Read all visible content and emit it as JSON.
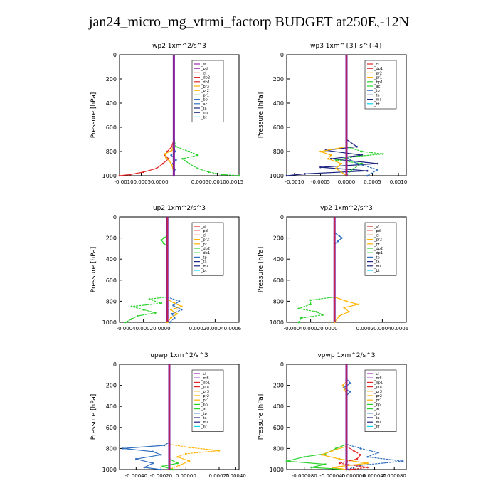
{
  "page_title": "jan24_micro_mg_vtrmi_factorp  BUDGET at250E,-12N",
  "colors": {
    "axes": "#000000",
    "zero_line": "#7b1fa2",
    "red": "#e32626",
    "orange": "#ffb300",
    "green": "#2bd12b",
    "blue": "#2f6fbf",
    "cyan": "#00d6f0",
    "navy": "#1a237e",
    "purple": "#9c27b0"
  },
  "chart_data": [
    {
      "type": "line",
      "title": "wp2   1xm^2/s^3",
      "ylabel": "Pressure [hPa]",
      "ylim": [
        1000,
        0
      ],
      "yticks": [
        0,
        200,
        400,
        600,
        800,
        1000
      ],
      "xlim": [
        -0.00125,
        0.0015
      ],
      "xtick_labels": [
        "-0.00100.00050.0000",
        "0.00050.00100.0015"
      ],
      "xtick_label_values": [
        -0.00075,
        0.001
      ],
      "legend": [
        "_sf",
        "_pd",
        "_cl",
        "_dp2",
        "_dp1",
        "_pr3",
        "_pr2",
        "_pr1",
        "_bp",
        "_ac",
        "_ta",
        "_ma",
        "_bt"
      ],
      "legend_colors": [
        "purple",
        "purple",
        "red",
        "red",
        "red",
        "orange",
        "orange",
        "green",
        "blue",
        "blue",
        "navy",
        "navy",
        "cyan"
      ],
      "series": [
        {
          "color": "red",
          "pressure": [
            700,
            760,
            800,
            830,
            860,
            900,
            940,
            970,
            990,
            1000
          ],
          "values": [
            0,
            -5e-05,
            -0.00015,
            -0.0002,
            -0.00012,
            -0.00025,
            -0.0004,
            -0.0007,
            -0.001,
            -0.00125
          ]
        },
        {
          "color": "green",
          "pressure": [
            700,
            760,
            800,
            830,
            860,
            900,
            940,
            970,
            990,
            1000
          ],
          "values": [
            0,
            5e-05,
            0.00035,
            0.00055,
            0.0002,
            0.00035,
            0.00055,
            0.0008,
            0.0011,
            0.0015
          ]
        },
        {
          "color": "orange",
          "pressure": [
            750,
            790,
            820,
            850,
            880,
            910,
            940,
            1000
          ],
          "values": [
            0,
            -5e-05,
            -0.0002,
            -0.00018,
            -0.0001,
            -5e-05,
            -2e-05,
            0
          ]
        },
        {
          "color": "blue",
          "pressure": [
            760,
            800,
            830,
            870,
            900,
            950,
            1000
          ],
          "values": [
            0,
            3e-05,
            -6e-05,
            5e-05,
            -2e-05,
            2e-05,
            0
          ]
        }
      ]
    },
    {
      "type": "line",
      "title": "wp3   1xm^{3} s^{-4}",
      "ylabel": "Pressure [hPa]",
      "ylim": [
        1000,
        0
      ],
      "yticks": [
        0,
        200,
        400,
        600,
        800,
        1000
      ],
      "xlim": [
        -0.00115,
        0.00115
      ],
      "xtick_labels": [
        "-0.0010",
        "-0.0005",
        "0.0000",
        "0.0005",
        "0.0010"
      ],
      "xtick_label_values": [
        -0.001,
        -0.0005,
        0,
        0.0005,
        0.001
      ],
      "legend": [
        "_cl",
        "_dp1",
        "_pr2",
        "_pr1",
        "_bp1",
        "_ac",
        "_tp",
        "_ta",
        "_ma",
        "_bt"
      ],
      "legend_colors": [
        "red",
        "red",
        "orange",
        "orange",
        "green",
        "green",
        "blue",
        "navy",
        "navy",
        "cyan"
      ],
      "series": [
        {
          "color": "navy",
          "pressure": [
            700,
            760,
            790,
            830,
            860,
            900,
            930,
            960,
            985,
            1000
          ],
          "values": [
            0,
            0.0002,
            -0.0004,
            0.0003,
            -0.0003,
            0.0006,
            -0.0005,
            0.0004,
            -0.0008,
            -0.00115
          ]
        },
        {
          "color": "green",
          "pressure": [
            760,
            800,
            820,
            840,
            870,
            900,
            950,
            1000
          ],
          "values": [
            0,
            0.0003,
            0.0007,
            0.0002,
            -0.0002,
            0.0003,
            0.0001,
            0
          ]
        },
        {
          "color": "orange",
          "pressure": [
            760,
            800,
            830,
            860,
            900,
            940,
            1000
          ],
          "values": [
            0,
            -0.0005,
            -0.0003,
            -0.00035,
            -0.0001,
            -0.0002,
            0
          ]
        },
        {
          "color": "blue",
          "pressure": [
            850,
            900,
            950,
            1000
          ],
          "values": [
            0,
            0.0002,
            0.0006,
            0.0004
          ]
        }
      ]
    },
    {
      "type": "line",
      "title": "up2   1xm^2/s^3",
      "ylabel": "Pressure [hPa]",
      "ylim": [
        1000,
        0
      ],
      "yticks": [
        0,
        200,
        400,
        600,
        800,
        1000
      ],
      "xlim": [
        -0.0004,
        0.0006
      ],
      "xtick_labels": [
        "-0.00040.00020.0000",
        "0.00020.00040.0006"
      ],
      "xtick_label_values": [
        -0.0002,
        0.0004
      ],
      "legend": [
        "_sf",
        "_pd",
        "_cl",
        "_pr2",
        "_pr1",
        "_dp2",
        "_dp1",
        "_tp",
        "_ta",
        "_ma",
        "_bt"
      ],
      "legend_colors": [
        "red",
        "red",
        "red",
        "orange",
        "orange",
        "green",
        "green",
        "blue",
        "navy",
        "navy",
        "cyan"
      ],
      "series": [
        {
          "color": "green",
          "pressure": [
            180,
            200,
            220,
            250,
            280
          ],
          "values": [
            0,
            -3e-05,
            -5e-05,
            -3e-05,
            0
          ]
        },
        {
          "color": "green",
          "pressure": [
            760,
            780,
            820,
            850,
            880,
            910,
            940,
            970,
            1000
          ],
          "values": [
            0,
            -0.00015,
            -5e-05,
            -0.0003,
            -0.0002,
            -0.0001,
            -0.00025,
            -0.0003,
            -0.00035
          ]
        },
        {
          "color": "orange",
          "pressure": [
            780,
            820,
            850,
            880,
            920,
            960,
            1000
          ],
          "values": [
            0,
            6e-05,
            0.00012,
            3e-05,
            8e-05,
            3e-05,
            0
          ]
        },
        {
          "color": "blue",
          "pressure": [
            760,
            800,
            840,
            880,
            920,
            960,
            1000
          ],
          "values": [
            0,
            0.0001,
            5e-05,
            0.00012,
            4e-05,
            6e-05,
            2e-05
          ]
        }
      ]
    },
    {
      "type": "line",
      "title": "vp2   1xm^2/s^3",
      "ylabel": "Pressure [hPa]",
      "ylim": [
        1000,
        0
      ],
      "yticks": [
        0,
        200,
        400,
        600,
        800,
        1000
      ],
      "xlim": [
        -0.0004,
        0.0006
      ],
      "xtick_labels": [
        "-0.00040.00020.0000",
        "0.00020.00040.0006"
      ],
      "xtick_label_values": [
        -0.0002,
        0.0004
      ],
      "legend": [
        "_sf",
        "_pd",
        "_cl",
        "_pr2",
        "_pr1",
        "_dp2",
        "_dp1",
        "_tp",
        "_ta",
        "_ma",
        "_bt"
      ],
      "legend_colors": [
        "red",
        "red",
        "red",
        "orange",
        "orange",
        "green",
        "green",
        "blue",
        "navy",
        "navy",
        "cyan"
      ],
      "series": [
        {
          "color": "blue",
          "pressure": [
            150,
            180,
            200,
            230,
            260
          ],
          "values": [
            0,
            4e-05,
            6e-05,
            3e-05,
            0
          ]
        },
        {
          "color": "green",
          "pressure": [
            760,
            790,
            830,
            870,
            900,
            930,
            960,
            1000
          ],
          "values": [
            0,
            -0.0002,
            -0.0002,
            -0.0003,
            -0.00015,
            -0.0001,
            -0.00028,
            -0.0003
          ]
        },
        {
          "color": "orange",
          "pressure": [
            760,
            800,
            830,
            860,
            900,
            940,
            1000
          ],
          "values": [
            0,
            0.0001,
            0.0002,
            8e-05,
            0.00012,
            4e-05,
            0
          ]
        }
      ]
    },
    {
      "type": "line",
      "title": "upwp   1xm^2/s^3",
      "ylabel": "Pressure [hPa]",
      "ylim": [
        1000,
        0
      ],
      "yticks": [
        0,
        200,
        400,
        600,
        800,
        1000
      ],
      "xlim": [
        -0.0003,
        0.00042
      ],
      "xtick_labels": [
        "-0.00040",
        "-0.00020",
        "0.00000",
        "0.00020",
        "0.00040"
      ],
      "xtick_label_values": [
        -0.0002,
        -5e-05,
        0.0001,
        0.0003,
        0.0004
      ],
      "legend": [
        "_cl",
        "_mfl",
        "_dp1",
        "_pr4",
        "_pr3",
        "_pr2",
        "_pr1",
        "_bp",
        "_ac",
        "_tp",
        "_ta",
        "_ma",
        "_bt"
      ],
      "legend_colors": [
        "purple",
        "purple",
        "red",
        "red",
        "orange",
        "orange",
        "orange",
        "green",
        "green",
        "blue",
        "navy",
        "navy",
        "cyan"
      ],
      "series": [
        {
          "color": "blue",
          "pressure": [
            740,
            770,
            800,
            830,
            860,
            900,
            940,
            980,
            1000
          ],
          "values": [
            0,
            -3e-05,
            -0.00028,
            -0.0001,
            -5e-05,
            -0.0002,
            -0.0001,
            -0.00015,
            -5e-05
          ]
        },
        {
          "color": "orange",
          "pressure": [
            760,
            790,
            820,
            850,
            880,
            920,
            960,
            1000
          ],
          "values": [
            0,
            0.00012,
            0.0003,
            0.0001,
            5e-05,
            0.00012,
            6e-05,
            0
          ]
        },
        {
          "color": "green",
          "pressure": [
            900,
            940,
            970,
            1000
          ],
          "values": [
            0,
            5e-05,
            -4e-05,
            2e-05
          ]
        }
      ]
    },
    {
      "type": "line",
      "title": "vpwp   1xm^2/s^3",
      "ylabel": "Pressure [hPa]",
      "ylim": [
        1000,
        0
      ],
      "yticks": [
        0,
        200,
        400,
        600,
        800,
        1000
      ],
      "xlim": [
        -8.5e-05,
        8.5e-05
      ],
      "xtick_labels": [
        "-0.000080",
        "-0.000040",
        "0.000000",
        "0.000040",
        "0.000080"
      ],
      "xtick_label_values": [
        -6e-05,
        -2e-05,
        1e-05,
        4e-05,
        6.8e-05
      ],
      "legend": [
        "_cl",
        "_mfl",
        "_dp1",
        "_pr4",
        "_pr3",
        "_pr2",
        "_pr1",
        "_bp",
        "_ac",
        "_tp",
        "_ta",
        "_ma",
        "_bt"
      ],
      "legend_colors": [
        "purple",
        "purple",
        "red",
        "red",
        "orange",
        "orange",
        "orange",
        "green",
        "green",
        "blue",
        "navy",
        "navy",
        "cyan"
      ],
      "series": [
        {
          "color": "blue",
          "pressure": [
            140,
            180,
            220,
            260,
            300
          ],
          "values": [
            0,
            6e-06,
            -4e-06,
            5e-06,
            0
          ]
        },
        {
          "color": "orange",
          "pressure": [
            160,
            200,
            240,
            280
          ],
          "values": [
            0,
            -5e-06,
            -3e-06,
            0
          ]
        },
        {
          "color": "green",
          "pressure": [
            760,
            800,
            850,
            880,
            920,
            950,
            980,
            1000
          ],
          "values": [
            0,
            -1.5e-05,
            -3e-05,
            -6e-05,
            -8.5e-05,
            -3e-05,
            -5e-05,
            0
          ]
        },
        {
          "color": "blue",
          "pressure": [
            760,
            800,
            840,
            880,
            920,
            960,
            1000
          ],
          "values": [
            0,
            2e-05,
            4.5e-05,
            3e-05,
            8e-05,
            2e-05,
            0
          ]
        },
        {
          "color": "orange",
          "pressure": [
            780,
            820,
            860,
            900,
            940,
            980,
            1000
          ],
          "values": [
            0,
            -2e-05,
            -3.5e-05,
            -1e-05,
            3e-05,
            -2e-05,
            0
          ]
        },
        {
          "color": "red",
          "pressure": [
            780,
            820,
            860,
            900,
            940,
            980,
            1000
          ],
          "values": [
            0,
            1e-05,
            2e-05,
            1.5e-05,
            -1e-05,
            3e-05,
            5e-06
          ]
        }
      ]
    }
  ]
}
